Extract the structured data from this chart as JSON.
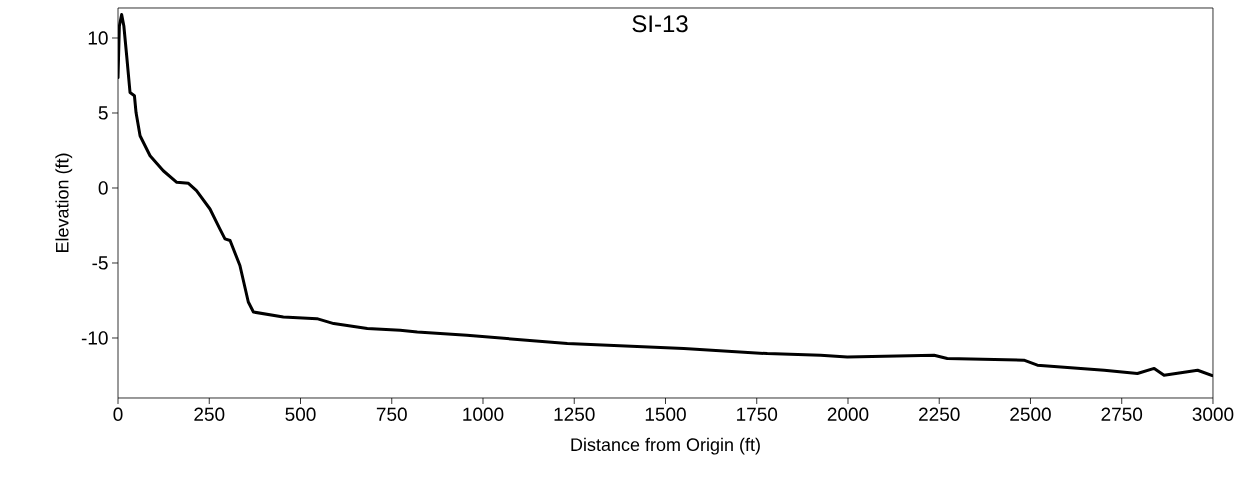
{
  "chart_data": {
    "type": "line",
    "title": "SI-13",
    "xlabel": "Distance from Origin (ft)",
    "ylabel": "Elevation (ft)",
    "xlim": [
      0,
      3000
    ],
    "ylim": [
      -14,
      12
    ],
    "xticks": [
      0,
      250,
      500,
      750,
      1000,
      1250,
      1500,
      1750,
      2000,
      2250,
      2500,
      2750,
      3000
    ],
    "yticks": [
      -10,
      -5,
      0,
      5,
      10
    ],
    "grid": false,
    "legend": false,
    "marker": "none",
    "line_style": "solid",
    "series": [
      {
        "color": "#000000",
        "x": [
          0,
          3.7,
          10,
          16,
          23.8,
          33,
          45,
          49.4,
          60.4,
          87.8,
          124,
          161,
          193,
          215,
          252,
          279,
          293,
          307,
          334,
          357,
          371,
          453,
          545,
          591,
          683,
          773,
          820,
          956,
          1231,
          1550,
          1779,
          1925,
          1998,
          2236,
          2272,
          2482,
          2519,
          2702,
          2793,
          2839,
          2866,
          2958,
          3000
        ],
        "values": [
          7.36,
          10.8,
          11.57,
          10.8,
          8.8,
          6.36,
          6.15,
          5.03,
          3.48,
          2.15,
          1.15,
          0.38,
          0.31,
          -0.18,
          -1.4,
          -2.73,
          -3.39,
          -3.5,
          -5.17,
          -7.6,
          -8.27,
          -8.6,
          -8.71,
          -9.04,
          -9.37,
          -9.49,
          -9.6,
          -9.82,
          -10.37,
          -10.7,
          -11.04,
          -11.15,
          -11.26,
          -11.15,
          -11.37,
          -11.48,
          -11.81,
          -12.15,
          -12.37,
          -12.03,
          -12.48,
          -12.15,
          -12.52
        ]
      }
    ]
  }
}
